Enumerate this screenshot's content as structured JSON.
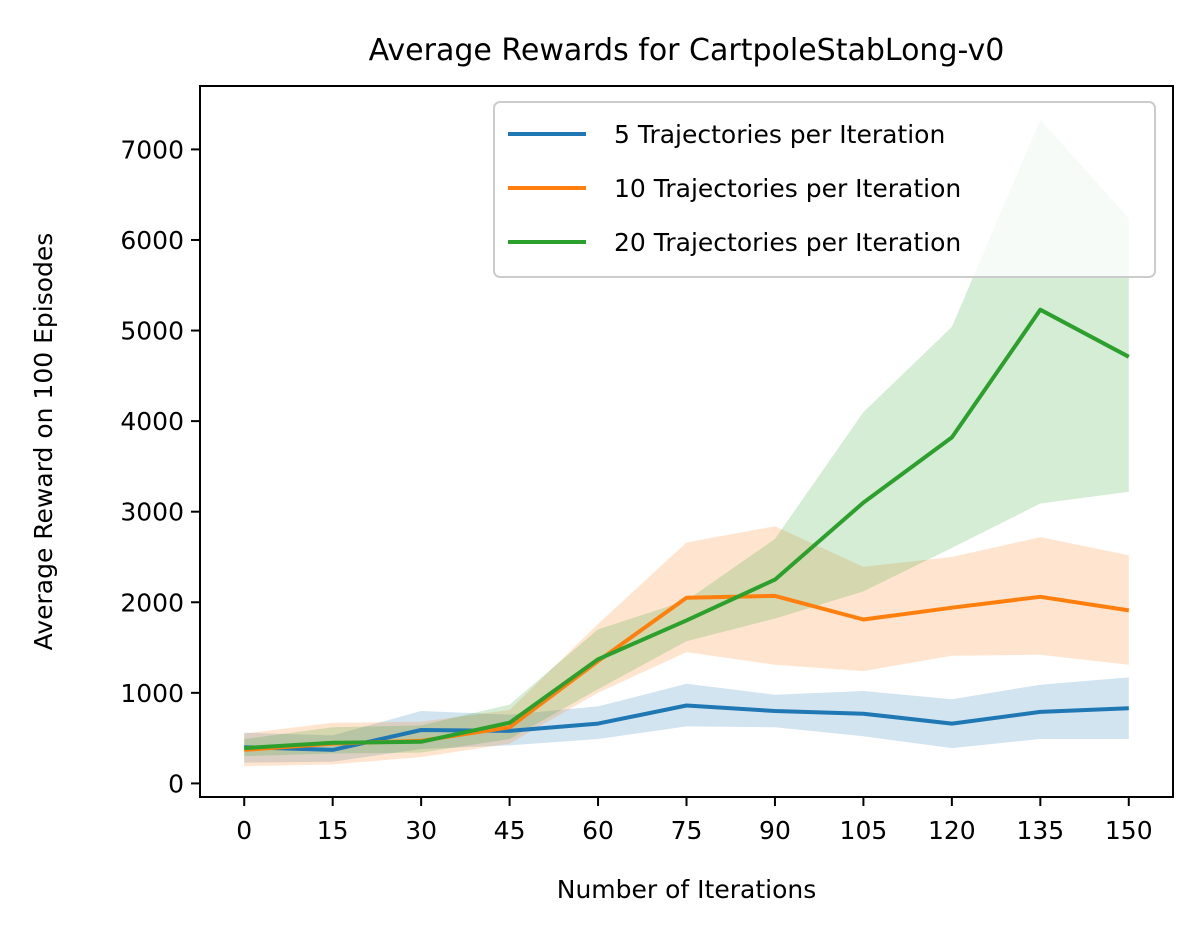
{
  "chart_data": {
    "type": "line",
    "title": "Average Rewards for CartpoleStabLong-v0",
    "xlabel": "Number of Iterations",
    "ylabel": "Average Reward on 100 Episodes",
    "x": [
      0,
      15,
      30,
      45,
      60,
      75,
      90,
      105,
      120,
      135,
      150
    ],
    "xticks": [
      0,
      15,
      30,
      45,
      60,
      75,
      90,
      105,
      120,
      135,
      150
    ],
    "yticks": [
      0,
      1000,
      2000,
      3000,
      4000,
      5000,
      6000,
      7000
    ],
    "xlim": [
      -7.5,
      157.5
    ],
    "ylim": [
      -150,
      7700
    ],
    "grid": false,
    "legend_position": "top-right",
    "series": [
      {
        "name": "5 Trajectories per Iteration",
        "color": "#1f77b4",
        "values": [
          400,
          370,
          590,
          580,
          660,
          860,
          800,
          770,
          660,
          790,
          830
        ],
        "lower": [
          230,
          240,
          380,
          420,
          490,
          630,
          620,
          520,
          390,
          490,
          490
        ],
        "upper": [
          560,
          530,
          800,
          760,
          850,
          1100,
          980,
          1020,
          930,
          1090,
          1170
        ]
      },
      {
        "name": "10 Trajectories per Iteration",
        "color": "#ff7f0e",
        "values": [
          370,
          440,
          470,
          620,
          1350,
          2050,
          2070,
          1810,
          1940,
          2060,
          1910
        ],
        "lower": [
          190,
          210,
          290,
          440,
          1000,
          1450,
          1310,
          1240,
          1410,
          1420,
          1310
        ],
        "upper": [
          550,
          670,
          680,
          810,
          1760,
          2660,
          2840,
          2390,
          2500,
          2720,
          2520
        ]
      },
      {
        "name": "20 Trajectories per Iteration",
        "color": "#2ca02c",
        "values": [
          390,
          450,
          460,
          670,
          1370,
          1800,
          2250,
          3100,
          3820,
          5230,
          4710
        ],
        "lower": [
          300,
          330,
          340,
          490,
          1040,
          1570,
          1820,
          2120,
          2600,
          3090,
          3220
        ],
        "upper": [
          490,
          620,
          640,
          870,
          1700,
          2020,
          2700,
          4100,
          5040,
          7330,
          6240
        ]
      }
    ]
  }
}
